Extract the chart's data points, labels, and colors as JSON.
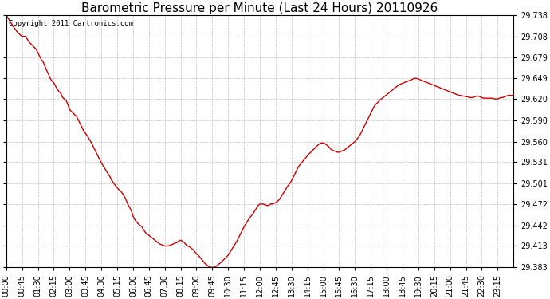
{
  "title": "Barometric Pressure per Minute (Last 24 Hours) 20110926",
  "copyright": "Copyright 2011 Cartronics.com",
  "line_color": "#cc0000",
  "bg_color": "#ffffff",
  "plot_bg_color": "#ffffff",
  "grid_color": "#b0b0b0",
  "ylim": [
    29.383,
    29.738
  ],
  "yticks": [
    29.383,
    29.413,
    29.442,
    29.472,
    29.501,
    29.531,
    29.56,
    29.59,
    29.62,
    29.649,
    29.679,
    29.708,
    29.738
  ],
  "xtick_labels": [
    "00:00",
    "00:45",
    "01:30",
    "02:15",
    "03:00",
    "03:45",
    "04:30",
    "05:15",
    "06:00",
    "06:45",
    "07:30",
    "08:15",
    "09:00",
    "09:45",
    "10:30",
    "11:15",
    "12:00",
    "12:45",
    "13:30",
    "14:15",
    "15:00",
    "15:45",
    "16:30",
    "17:15",
    "18:00",
    "18:45",
    "19:30",
    "20:15",
    "21:00",
    "21:45",
    "22:30",
    "23:15"
  ],
  "title_fontsize": 11,
  "tick_fontsize": 7,
  "copyright_fontsize": 6.5,
  "line_width": 1.0,
  "data_points": [
    [
      0,
      29.738
    ],
    [
      10,
      29.73
    ],
    [
      20,
      29.722
    ],
    [
      30,
      29.715
    ],
    [
      40,
      29.71
    ],
    [
      45,
      29.708
    ],
    [
      55,
      29.708
    ],
    [
      65,
      29.7
    ],
    [
      75,
      29.695
    ],
    [
      85,
      29.69
    ],
    [
      90,
      29.685
    ],
    [
      95,
      29.68
    ],
    [
      100,
      29.675
    ],
    [
      105,
      29.672
    ],
    [
      115,
      29.66
    ],
    [
      120,
      29.655
    ],
    [
      125,
      29.649
    ],
    [
      130,
      29.645
    ],
    [
      135,
      29.643
    ],
    [
      140,
      29.638
    ],
    [
      150,
      29.63
    ],
    [
      155,
      29.628
    ],
    [
      160,
      29.622
    ],
    [
      165,
      29.62
    ],
    [
      170,
      29.618
    ],
    [
      175,
      29.612
    ],
    [
      180,
      29.605
    ],
    [
      190,
      29.6
    ],
    [
      200,
      29.595
    ],
    [
      210,
      29.585
    ],
    [
      220,
      29.575
    ],
    [
      230,
      29.568
    ],
    [
      240,
      29.56
    ],
    [
      250,
      29.55
    ],
    [
      255,
      29.545
    ],
    [
      265,
      29.535
    ],
    [
      270,
      29.53
    ],
    [
      280,
      29.522
    ],
    [
      285,
      29.518
    ],
    [
      295,
      29.51
    ],
    [
      300,
      29.505
    ],
    [
      310,
      29.498
    ],
    [
      315,
      29.495
    ],
    [
      320,
      29.492
    ],
    [
      325,
      29.49
    ],
    [
      330,
      29.487
    ],
    [
      335,
      29.483
    ],
    [
      340,
      29.478
    ],
    [
      345,
      29.472
    ],
    [
      355,
      29.463
    ],
    [
      360,
      29.455
    ],
    [
      365,
      29.45
    ],
    [
      370,
      29.447
    ],
    [
      375,
      29.444
    ],
    [
      380,
      29.442
    ],
    [
      385,
      29.44
    ],
    [
      390,
      29.436
    ],
    [
      395,
      29.432
    ],
    [
      400,
      29.43
    ],
    [
      405,
      29.428
    ],
    [
      410,
      29.426
    ],
    [
      415,
      29.424
    ],
    [
      420,
      29.422
    ],
    [
      425,
      29.42
    ],
    [
      430,
      29.418
    ],
    [
      435,
      29.416
    ],
    [
      440,
      29.415
    ],
    [
      445,
      29.414
    ],
    [
      450,
      29.413
    ],
    [
      455,
      29.413
    ],
    [
      460,
      29.413
    ],
    [
      465,
      29.414
    ],
    [
      470,
      29.415
    ],
    [
      475,
      29.416
    ],
    [
      480,
      29.417
    ],
    [
      485,
      29.418
    ],
    [
      490,
      29.42
    ],
    [
      495,
      29.421
    ],
    [
      500,
      29.42
    ],
    [
      505,
      29.418
    ],
    [
      510,
      29.415
    ],
    [
      515,
      29.413
    ],
    [
      520,
      29.412
    ],
    [
      525,
      29.41
    ],
    [
      530,
      29.408
    ],
    [
      535,
      29.405
    ],
    [
      540,
      29.402
    ],
    [
      545,
      29.4
    ],
    [
      550,
      29.397
    ],
    [
      555,
      29.394
    ],
    [
      560,
      29.391
    ],
    [
      565,
      29.388
    ],
    [
      570,
      29.386
    ],
    [
      575,
      29.384
    ],
    [
      580,
      29.383
    ],
    [
      585,
      29.383
    ],
    [
      590,
      29.383
    ],
    [
      595,
      29.384
    ],
    [
      600,
      29.386
    ],
    [
      610,
      29.39
    ],
    [
      620,
      29.395
    ],
    [
      630,
      29.4
    ],
    [
      640,
      29.408
    ],
    [
      645,
      29.412
    ],
    [
      650,
      29.416
    ],
    [
      655,
      29.42
    ],
    [
      660,
      29.425
    ],
    [
      665,
      29.43
    ],
    [
      670,
      29.435
    ],
    [
      675,
      29.44
    ],
    [
      680,
      29.444
    ],
    [
      685,
      29.448
    ],
    [
      690,
      29.452
    ],
    [
      695,
      29.455
    ],
    [
      700,
      29.458
    ],
    [
      705,
      29.462
    ],
    [
      710,
      29.466
    ],
    [
      715,
      29.47
    ],
    [
      720,
      29.472
    ],
    [
      725,
      29.472
    ],
    [
      730,
      29.472
    ],
    [
      735,
      29.471
    ],
    [
      740,
      29.47
    ],
    [
      745,
      29.47
    ],
    [
      750,
      29.472
    ],
    [
      755,
      29.472
    ],
    [
      760,
      29.473
    ],
    [
      765,
      29.474
    ],
    [
      770,
      29.476
    ],
    [
      775,
      29.478
    ],
    [
      780,
      29.482
    ],
    [
      785,
      29.486
    ],
    [
      790,
      29.49
    ],
    [
      795,
      29.494
    ],
    [
      800,
      29.498
    ],
    [
      805,
      29.501
    ],
    [
      810,
      29.505
    ],
    [
      815,
      29.51
    ],
    [
      820,
      29.515
    ],
    [
      825,
      29.52
    ],
    [
      830,
      29.525
    ],
    [
      835,
      29.528
    ],
    [
      840,
      29.531
    ],
    [
      845,
      29.534
    ],
    [
      850,
      29.537
    ],
    [
      855,
      29.54
    ],
    [
      860,
      29.543
    ],
    [
      865,
      29.545
    ],
    [
      870,
      29.548
    ],
    [
      875,
      29.55
    ],
    [
      880,
      29.553
    ],
    [
      885,
      29.555
    ],
    [
      890,
      29.557
    ],
    [
      895,
      29.558
    ],
    [
      900,
      29.558
    ],
    [
      905,
      29.557
    ],
    [
      910,
      29.555
    ],
    [
      915,
      29.553
    ],
    [
      920,
      29.55
    ],
    [
      925,
      29.548
    ],
    [
      930,
      29.547
    ],
    [
      935,
      29.546
    ],
    [
      940,
      29.545
    ],
    [
      945,
      29.545
    ],
    [
      950,
      29.546
    ],
    [
      955,
      29.547
    ],
    [
      960,
      29.548
    ],
    [
      965,
      29.55
    ],
    [
      970,
      29.552
    ],
    [
      975,
      29.554
    ],
    [
      980,
      29.556
    ],
    [
      985,
      29.558
    ],
    [
      990,
      29.56
    ],
    [
      995,
      29.563
    ],
    [
      1000,
      29.566
    ],
    [
      1005,
      29.57
    ],
    [
      1010,
      29.575
    ],
    [
      1015,
      29.58
    ],
    [
      1020,
      29.585
    ],
    [
      1025,
      29.59
    ],
    [
      1030,
      29.595
    ],
    [
      1035,
      29.6
    ],
    [
      1040,
      29.605
    ],
    [
      1045,
      29.61
    ],
    [
      1050,
      29.613
    ],
    [
      1055,
      29.615
    ],
    [
      1060,
      29.618
    ],
    [
      1065,
      29.62
    ],
    [
      1070,
      29.622
    ],
    [
      1075,
      29.624
    ],
    [
      1080,
      29.626
    ],
    [
      1085,
      29.628
    ],
    [
      1090,
      29.63
    ],
    [
      1095,
      29.632
    ],
    [
      1100,
      29.634
    ],
    [
      1105,
      29.636
    ],
    [
      1110,
      29.638
    ],
    [
      1115,
      29.64
    ],
    [
      1120,
      29.641
    ],
    [
      1125,
      29.642
    ],
    [
      1130,
      29.643
    ],
    [
      1135,
      29.644
    ],
    [
      1140,
      29.645
    ],
    [
      1145,
      29.646
    ],
    [
      1150,
      29.647
    ],
    [
      1155,
      29.648
    ],
    [
      1160,
      29.649
    ],
    [
      1165,
      29.649
    ],
    [
      1170,
      29.648
    ],
    [
      1175,
      29.647
    ],
    [
      1180,
      29.646
    ],
    [
      1185,
      29.645
    ],
    [
      1190,
      29.644
    ],
    [
      1195,
      29.643
    ],
    [
      1200,
      29.642
    ],
    [
      1205,
      29.641
    ],
    [
      1210,
      29.64
    ],
    [
      1215,
      29.639
    ],
    [
      1220,
      29.638
    ],
    [
      1225,
      29.637
    ],
    [
      1230,
      29.636
    ],
    [
      1235,
      29.635
    ],
    [
      1240,
      29.634
    ],
    [
      1245,
      29.633
    ],
    [
      1250,
      29.632
    ],
    [
      1255,
      29.631
    ],
    [
      1260,
      29.63
    ],
    [
      1265,
      29.629
    ],
    [
      1270,
      29.628
    ],
    [
      1275,
      29.627
    ],
    [
      1280,
      29.626
    ],
    [
      1285,
      29.625
    ],
    [
      1290,
      29.625
    ],
    [
      1295,
      29.624
    ],
    [
      1300,
      29.624
    ],
    [
      1305,
      29.623
    ],
    [
      1310,
      29.623
    ],
    [
      1315,
      29.622
    ],
    [
      1320,
      29.622
    ],
    [
      1325,
      29.622
    ],
    [
      1330,
      29.623
    ],
    [
      1335,
      29.624
    ],
    [
      1340,
      29.624
    ],
    [
      1345,
      29.623
    ],
    [
      1350,
      29.622
    ],
    [
      1355,
      29.621
    ],
    [
      1360,
      29.621
    ],
    [
      1365,
      29.621
    ],
    [
      1370,
      29.621
    ],
    [
      1375,
      29.621
    ],
    [
      1380,
      29.621
    ],
    [
      1385,
      29.62
    ],
    [
      1390,
      29.62
    ],
    [
      1395,
      29.62
    ],
    [
      1400,
      29.621
    ],
    [
      1405,
      29.622
    ],
    [
      1410,
      29.622
    ],
    [
      1415,
      29.623
    ],
    [
      1420,
      29.624
    ],
    [
      1425,
      29.625
    ],
    [
      1430,
      29.625
    ],
    [
      1435,
      29.625
    ],
    [
      1440,
      29.625
    ]
  ]
}
